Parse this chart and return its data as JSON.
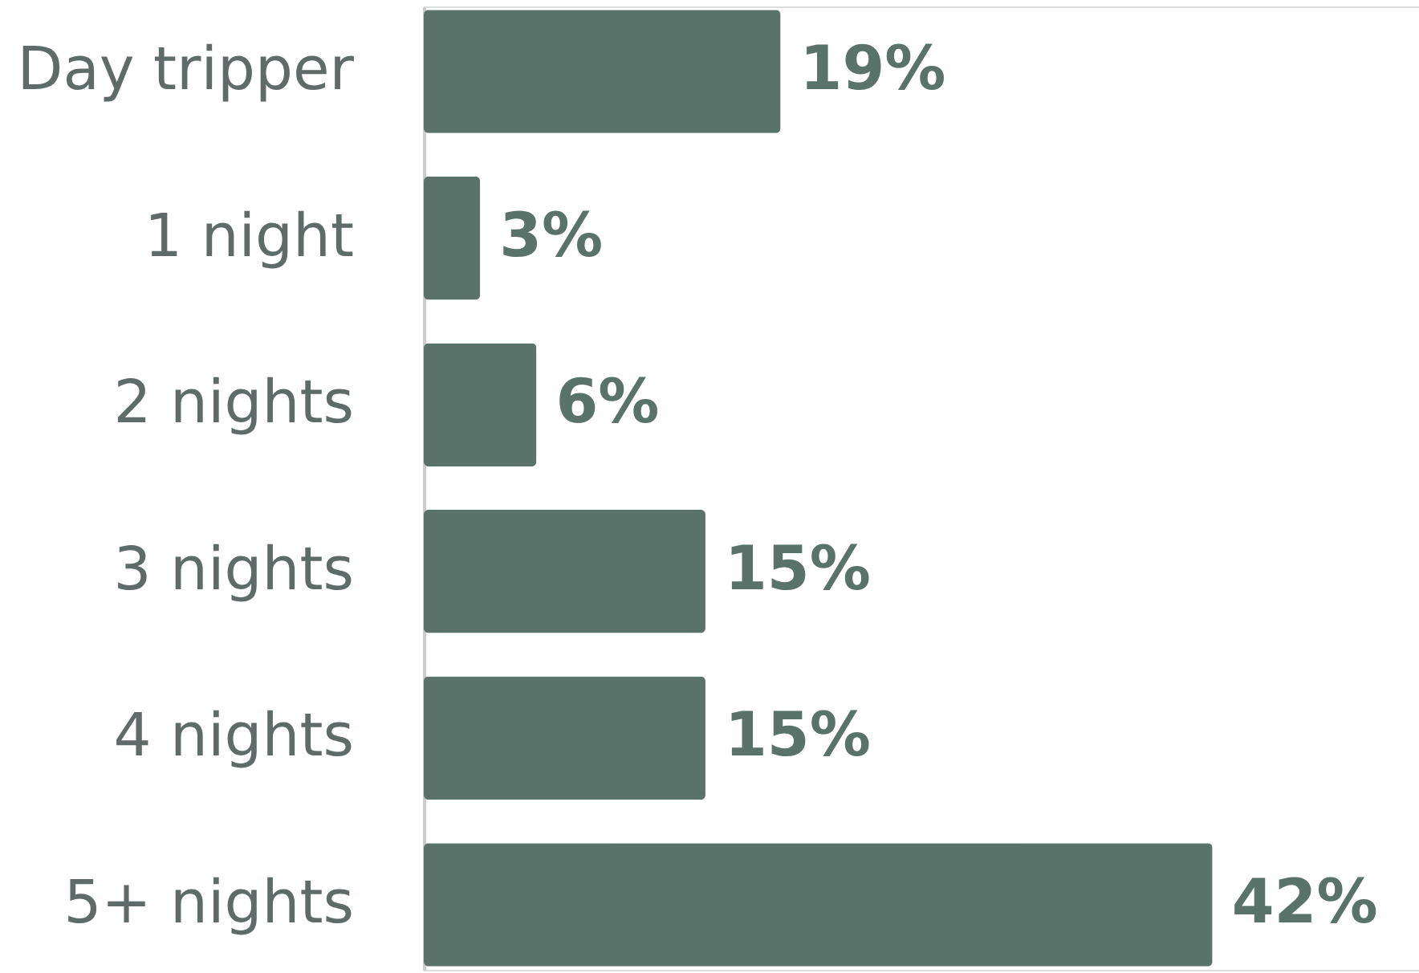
{
  "chart_data": {
    "type": "bar",
    "orientation": "horizontal",
    "categories": [
      "Day tripper",
      "1 night",
      "2 nights",
      "3 nights",
      "4 nights",
      "5+ nights"
    ],
    "values": [
      19,
      3,
      6,
      15,
      15,
      42
    ],
    "color": "#59736b",
    "value_labels": [
      "19%",
      "3%",
      "6%",
      "15%",
      "15%",
      "42%"
    ],
    "xlim": [
      0,
      53
    ]
  }
}
